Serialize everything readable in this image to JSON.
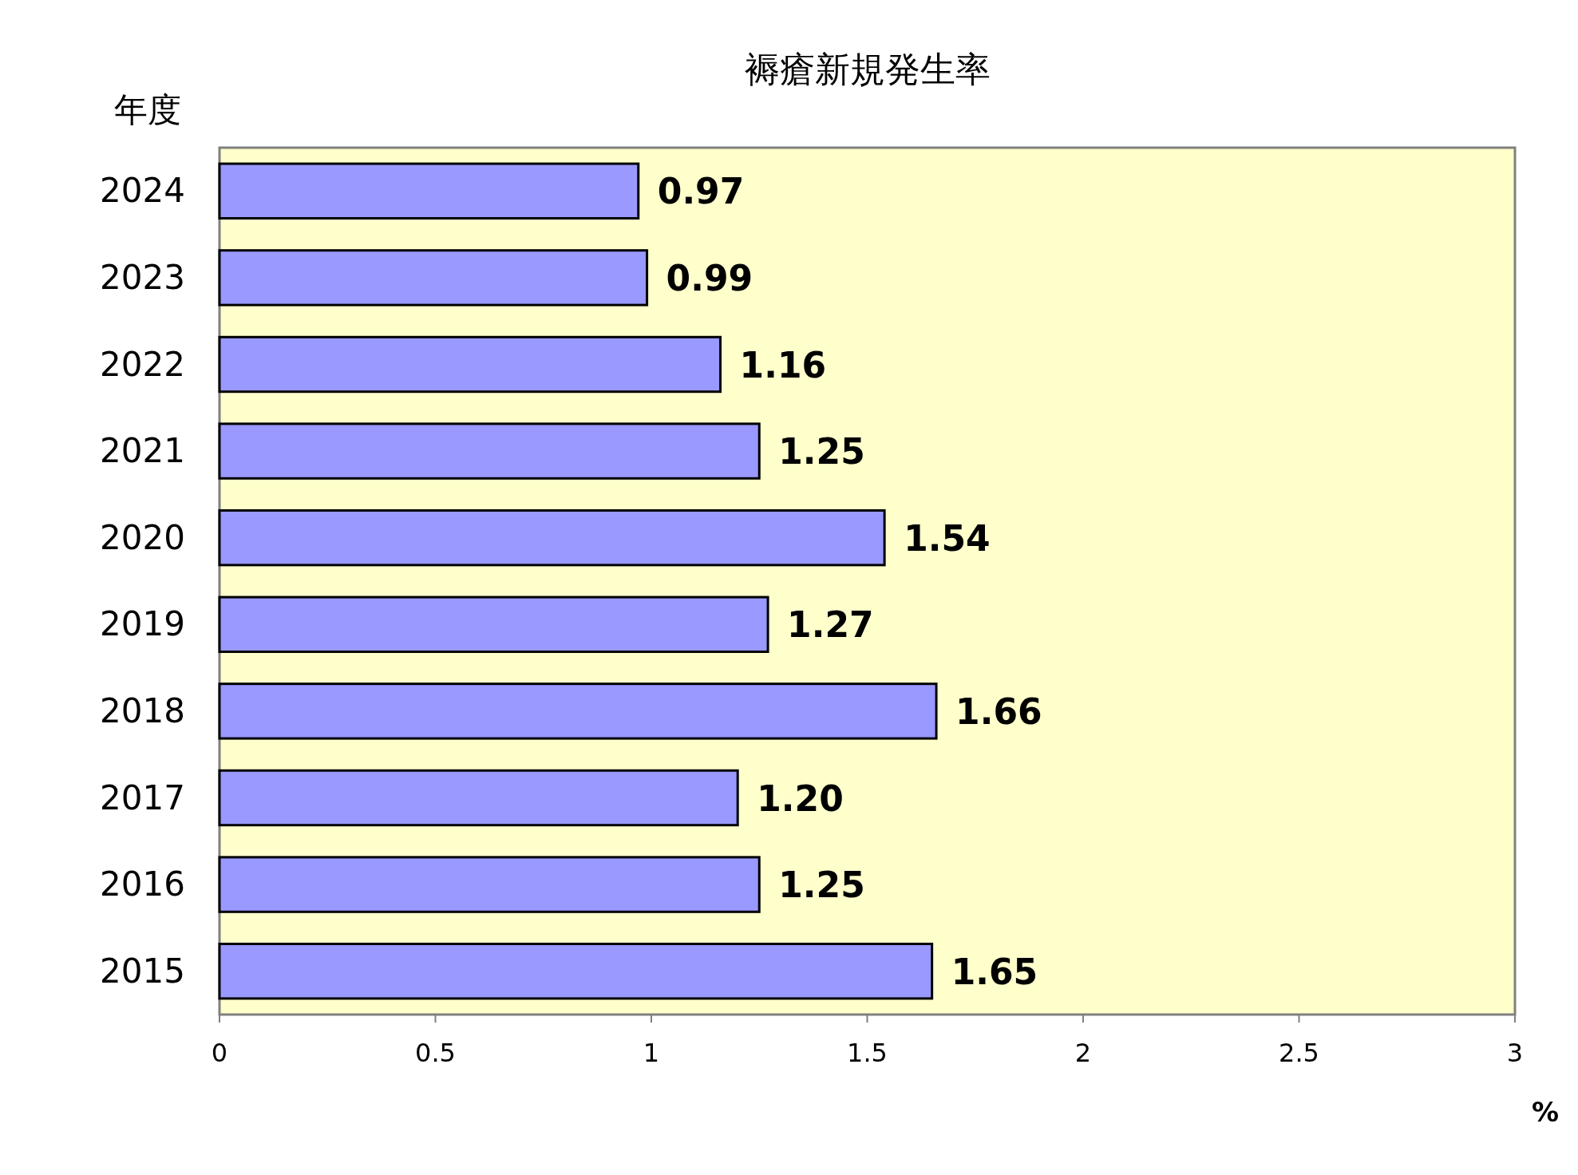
{
  "chart_data": {
    "type": "bar",
    "orientation": "horizontal",
    "title": "褥瘡新規発生率",
    "ylabel": "年度",
    "xlabel": "%",
    "categories": [
      "2024",
      "2023",
      "2022",
      "2021",
      "2020",
      "2019",
      "2018",
      "2017",
      "2016",
      "2015"
    ],
    "values": [
      0.97,
      0.99,
      1.16,
      1.25,
      1.54,
      1.27,
      1.66,
      1.2,
      1.25,
      1.65
    ],
    "value_labels": [
      "0.97",
      "0.99",
      "1.16",
      "1.25",
      "1.54",
      "1.27",
      "1.66",
      "1.20",
      "1.25",
      "1.65"
    ],
    "color": "#9999ff",
    "xlim": [
      0,
      3
    ],
    "xticks": [
      0,
      0.5,
      1,
      1.5,
      2,
      2.5,
      3
    ]
  }
}
